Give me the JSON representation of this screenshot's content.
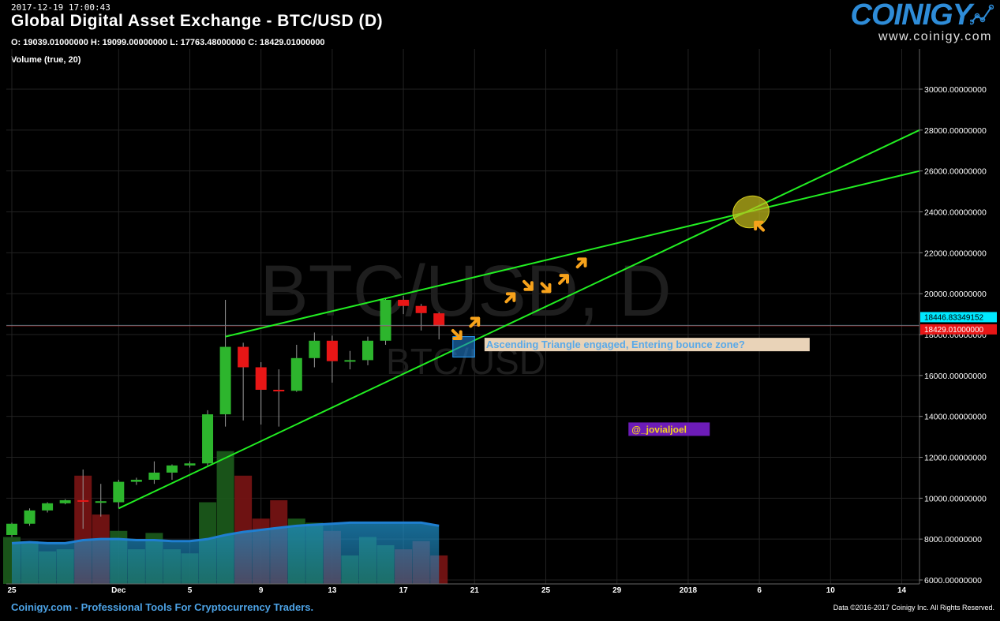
{
  "header": {
    "timestamp": "2017-12-19 17:00:43",
    "title": "Global Digital Asset Exchange - BTC/USD (D)",
    "ohlc": "O: 19039.01000000 H: 19099.00000000 L: 17763.48000000 C: 18429.01000000",
    "volume_label": "Volume (true, 20)"
  },
  "logo": {
    "word": "COINIGY",
    "url": "www.coinigy.com"
  },
  "footer": {
    "left": "Coinigy.com - Professional Tools For Cryptocurrency Traders.",
    "right": "Data ©2016-2017 Coinigy Inc. All Rights Reserved."
  },
  "colors": {
    "up": "#2db52d",
    "down": "#e81616",
    "trendline": "#22ee22",
    "arrow": "#f7a21b",
    "last_price": "#e81616",
    "cursor_price": "#00e8ff",
    "volume_ma": "#1f7fd1",
    "annotation_text": "#5aa9e8"
  },
  "chart_data": {
    "type": "candlestick",
    "title": "Global Digital Asset Exchange - BTC/USD (D)",
    "watermark": [
      "BTC/USD, D",
      "BTC/USD"
    ],
    "ylim": [
      6000,
      32000
    ],
    "y_ticks": [
      6000,
      8000,
      10000,
      12000,
      14000,
      16000,
      18000,
      20000,
      22000,
      24000,
      26000,
      28000,
      30000
    ],
    "y_tick_labels": [
      "6000.00000000",
      "8000.00000000",
      "10000.00000000",
      "12000.00000000",
      "14000.00000000",
      "16000.00000000",
      "18000.00000000",
      "20000.00000000",
      "22000.00000000",
      "24000.00000000",
      "26000.00000000",
      "28000.00000000",
      "30000.00000000"
    ],
    "x_start": "2017-11-25",
    "x_end": "2018-01-15",
    "x_ticks": [
      {
        "date": "2017-11-25",
        "label": "25"
      },
      {
        "date": "2017-12-01",
        "label": "Dec"
      },
      {
        "date": "2017-12-05",
        "label": "5"
      },
      {
        "date": "2017-12-09",
        "label": "9"
      },
      {
        "date": "2017-12-13",
        "label": "13"
      },
      {
        "date": "2017-12-17",
        "label": "17"
      },
      {
        "date": "2017-12-21",
        "label": "21"
      },
      {
        "date": "2017-12-25",
        "label": "25"
      },
      {
        "date": "2017-12-29",
        "label": "29"
      },
      {
        "date": "2018-01-02",
        "label": "2018"
      },
      {
        "date": "2018-01-06",
        "label": "6"
      },
      {
        "date": "2018-01-10",
        "label": "10"
      },
      {
        "date": "2018-01-14",
        "label": "14"
      }
    ],
    "candles": [
      {
        "date": "2017-11-25",
        "open": 8200,
        "high": 8800,
        "low": 8100,
        "close": 8750
      },
      {
        "date": "2017-11-26",
        "open": 8750,
        "high": 9500,
        "low": 8650,
        "close": 9400
      },
      {
        "date": "2017-11-27",
        "open": 9400,
        "high": 9800,
        "low": 9300,
        "close": 9750
      },
      {
        "date": "2017-11-28",
        "open": 9750,
        "high": 9950,
        "low": 9700,
        "close": 9900
      },
      {
        "date": "2017-11-29",
        "open": 9900,
        "high": 11400,
        "low": 8500,
        "close": 9850
      },
      {
        "date": "2017-11-30",
        "open": 9850,
        "high": 10700,
        "low": 9100,
        "close": 9850
      },
      {
        "date": "2017-12-01",
        "open": 9800,
        "high": 10900,
        "low": 9500,
        "close": 10800
      },
      {
        "date": "2017-12-02",
        "open": 10800,
        "high": 11000,
        "low": 10650,
        "close": 10900
      },
      {
        "date": "2017-12-03",
        "open": 10900,
        "high": 11800,
        "low": 10700,
        "close": 11250
      },
      {
        "date": "2017-12-04",
        "open": 11250,
        "high": 11650,
        "low": 10900,
        "close": 11600
      },
      {
        "date": "2017-12-05",
        "open": 11600,
        "high": 11800,
        "low": 11500,
        "close": 11700
      },
      {
        "date": "2017-12-06",
        "open": 11700,
        "high": 14300,
        "low": 11600,
        "close": 14100
      },
      {
        "date": "2017-12-07",
        "open": 14100,
        "high": 19700,
        "low": 13500,
        "close": 17400
      },
      {
        "date": "2017-12-08",
        "open": 17400,
        "high": 17600,
        "low": 13800,
        "close": 16400
      },
      {
        "date": "2017-12-09",
        "open": 16400,
        "high": 16650,
        "low": 13600,
        "close": 15300
      },
      {
        "date": "2017-12-10",
        "open": 15300,
        "high": 16300,
        "low": 13500,
        "close": 15250
      },
      {
        "date": "2017-12-11",
        "open": 15250,
        "high": 17500,
        "low": 15200,
        "close": 16850
      },
      {
        "date": "2017-12-12",
        "open": 16850,
        "high": 18100,
        "low": 16400,
        "close": 17700
      },
      {
        "date": "2017-12-13",
        "open": 17700,
        "high": 17950,
        "low": 15650,
        "close": 16700
      },
      {
        "date": "2017-12-14",
        "open": 16700,
        "high": 17200,
        "low": 16300,
        "close": 16750
      },
      {
        "date": "2017-12-15",
        "open": 16750,
        "high": 17900,
        "low": 16500,
        "close": 17700
      },
      {
        "date": "2017-12-16",
        "open": 17700,
        "high": 19800,
        "low": 17500,
        "close": 19700
      },
      {
        "date": "2017-12-17",
        "open": 19700,
        "high": 19900,
        "low": 19000,
        "close": 19400
      },
      {
        "date": "2017-12-18",
        "open": 19400,
        "high": 19500,
        "low": 18200,
        "close": 19050
      },
      {
        "date": "2017-12-19",
        "open": 19039,
        "high": 19099,
        "low": 17763,
        "close": 18429
      }
    ],
    "volume": [
      {
        "date": "2017-11-25",
        "value": 8100,
        "dir": "up"
      },
      {
        "date": "2017-11-26",
        "value": 7900,
        "dir": "up"
      },
      {
        "date": "2017-11-27",
        "value": 7400,
        "dir": "up"
      },
      {
        "date": "2017-11-28",
        "value": 7500,
        "dir": "up"
      },
      {
        "date": "2017-11-29",
        "value": 11100,
        "dir": "down"
      },
      {
        "date": "2017-11-30",
        "value": 9200,
        "dir": "down"
      },
      {
        "date": "2017-12-01",
        "value": 8400,
        "dir": "up"
      },
      {
        "date": "2017-12-02",
        "value": 7500,
        "dir": "up"
      },
      {
        "date": "2017-12-03",
        "value": 8300,
        "dir": "up"
      },
      {
        "date": "2017-12-04",
        "value": 7500,
        "dir": "up"
      },
      {
        "date": "2017-12-05",
        "value": 7300,
        "dir": "up"
      },
      {
        "date": "2017-12-06",
        "value": 9800,
        "dir": "up"
      },
      {
        "date": "2017-12-07",
        "value": 12300,
        "dir": "up"
      },
      {
        "date": "2017-12-08",
        "value": 11100,
        "dir": "down"
      },
      {
        "date": "2017-12-09",
        "value": 9000,
        "dir": "down"
      },
      {
        "date": "2017-12-10",
        "value": 9900,
        "dir": "down"
      },
      {
        "date": "2017-12-11",
        "value": 9000,
        "dir": "up"
      },
      {
        "date": "2017-12-12",
        "value": 8800,
        "dir": "up"
      },
      {
        "date": "2017-12-13",
        "value": 8400,
        "dir": "down"
      },
      {
        "date": "2017-12-14",
        "value": 7200,
        "dir": "up"
      },
      {
        "date": "2017-12-15",
        "value": 8100,
        "dir": "up"
      },
      {
        "date": "2017-12-16",
        "value": 7700,
        "dir": "up"
      },
      {
        "date": "2017-12-17",
        "value": 7500,
        "dir": "down"
      },
      {
        "date": "2017-12-18",
        "value": 7900,
        "dir": "down"
      },
      {
        "date": "2017-12-19",
        "value": 7200,
        "dir": "down"
      }
    ],
    "volume_ma": [
      7800,
      7850,
      7800,
      7800,
      7950,
      8000,
      8000,
      7950,
      7950,
      7900,
      7900,
      8000,
      8200,
      8350,
      8450,
      8550,
      8650,
      8700,
      8750,
      8800,
      8800,
      8800,
      8800,
      8800,
      8650
    ],
    "trendlines": [
      {
        "name": "upper",
        "from": {
          "date": "2017-12-07",
          "value": 17900
        },
        "to": {
          "date": "2018-01-15",
          "value": 26000
        }
      },
      {
        "name": "lower",
        "from": {
          "date": "2017-12-01",
          "value": 9500
        },
        "to": {
          "date": "2018-01-15",
          "value": 28000
        }
      }
    ],
    "reference_lines": [
      {
        "value": 18446.83349152,
        "label": "18446.83349152",
        "color": "#00e8ff"
      },
      {
        "value": 18429.01,
        "label": "18429.01000000",
        "color": "#e81616"
      }
    ],
    "zone_box": {
      "from": "2017-12-20",
      "to": "2017-12-21",
      "low": 16900,
      "high": 17900
    },
    "ellipse": {
      "date": "2018-01-05",
      "value": 24000
    },
    "annotations": [
      {
        "text": "Ascending Triangle engaged, Entering bounce zone?",
        "date": "2017-12-22",
        "value": 17300
      },
      {
        "text": "@_jovialjoel",
        "date": "2017-12-30",
        "value": 13200
      }
    ],
    "arrows": [
      {
        "date": "2017-12-20",
        "value": 18000,
        "dir": "dr"
      },
      {
        "date": "2017-12-21",
        "value": 18600,
        "dir": "ur"
      },
      {
        "date": "2017-12-23",
        "value": 19800,
        "dir": "ur"
      },
      {
        "date": "2017-12-24",
        "value": 20400,
        "dir": "dr"
      },
      {
        "date": "2017-12-25",
        "value": 20300,
        "dir": "dr"
      },
      {
        "date": "2017-12-26",
        "value": 20700,
        "dir": "ur"
      },
      {
        "date": "2017-12-27",
        "value": 21500,
        "dir": "ur"
      },
      {
        "date": "2018-01-06",
        "value": 23300,
        "dir": "ul"
      }
    ]
  }
}
